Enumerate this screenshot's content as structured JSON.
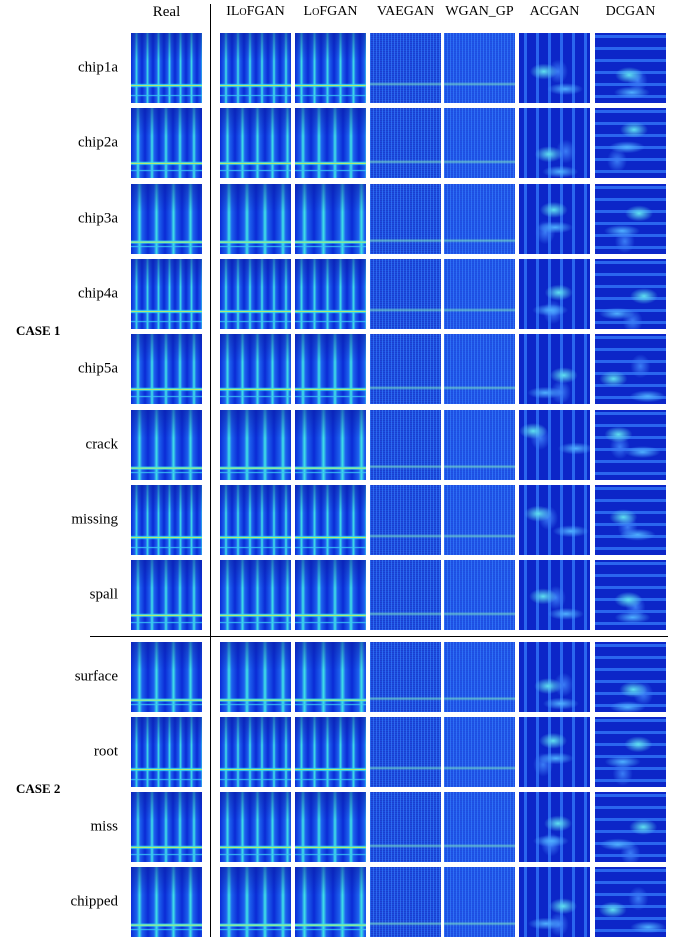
{
  "headers": [
    "Real",
    "ILoFGAN",
    "LoFGAN",
    "VAEGAN",
    "WGAN_GP",
    "ACGAN",
    "DCGAN"
  ],
  "case1": {
    "label": "CASE 1",
    "rows": [
      "chip1a",
      "chip2a",
      "chip3a",
      "chip4a",
      "chip5a",
      "crack",
      "missing",
      "spall"
    ]
  },
  "case2": {
    "label": "CASE 2",
    "rows": [
      "surface",
      "root",
      "miss",
      "chipped"
    ]
  }
}
